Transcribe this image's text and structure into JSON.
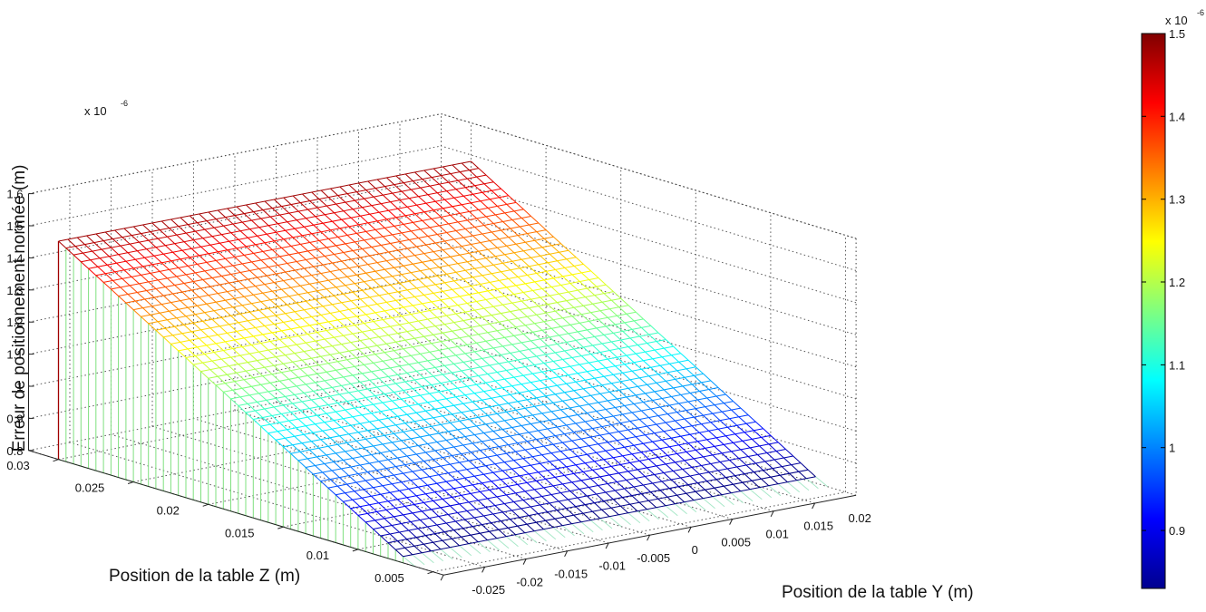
{
  "chart_data": {
    "type": "surface",
    "title": "",
    "xlabel": "Position de la table Y (m)",
    "ylabel": "Position de la table Z (m)",
    "zlabel": "Erreur de positionnement normée (m)",
    "x_ticks": [
      "-0.025",
      "-0.02",
      "-0.015",
      "-0.01",
      "-0.005",
      "0",
      "0.005",
      "0.01",
      "0.015",
      "0.02"
    ],
    "y_ticks": [
      "0.005",
      "0.01",
      "0.015",
      "0.02",
      "0.025",
      "0.03"
    ],
    "z_ticks": [
      "0.8",
      "0.9",
      "1",
      "1.1",
      "1.2",
      "1.3",
      "1.4",
      "1.5",
      "1.6"
    ],
    "z_multiplier": "x 10",
    "z_exponent": "-6",
    "xlim": [
      -0.025,
      0.025
    ],
    "ylim": [
      0.0,
      0.03
    ],
    "zlim": [
      8e-07,
      1.6e-06
    ],
    "surface": {
      "description_values": "z depends on Z-table position only; flat wall (green) at Z=0.007, ramp to maximum at Z=0.03",
      "z_positions": [
        0.007,
        0.03
      ],
      "z_values": [
        8.2e-07,
        1.48e-06
      ],
      "y_range": [
        -0.025,
        0.025
      ]
    },
    "colorbar": {
      "ticks": [
        "0.9",
        "1",
        "1.1",
        "1.2",
        "1.3",
        "1.4",
        "1.5"
      ],
      "multiplier": "x 10",
      "exponent": "-6",
      "range": [
        8.3e-07,
        1.5e-06
      ],
      "colormap": "jet"
    },
    "grid": true
  }
}
